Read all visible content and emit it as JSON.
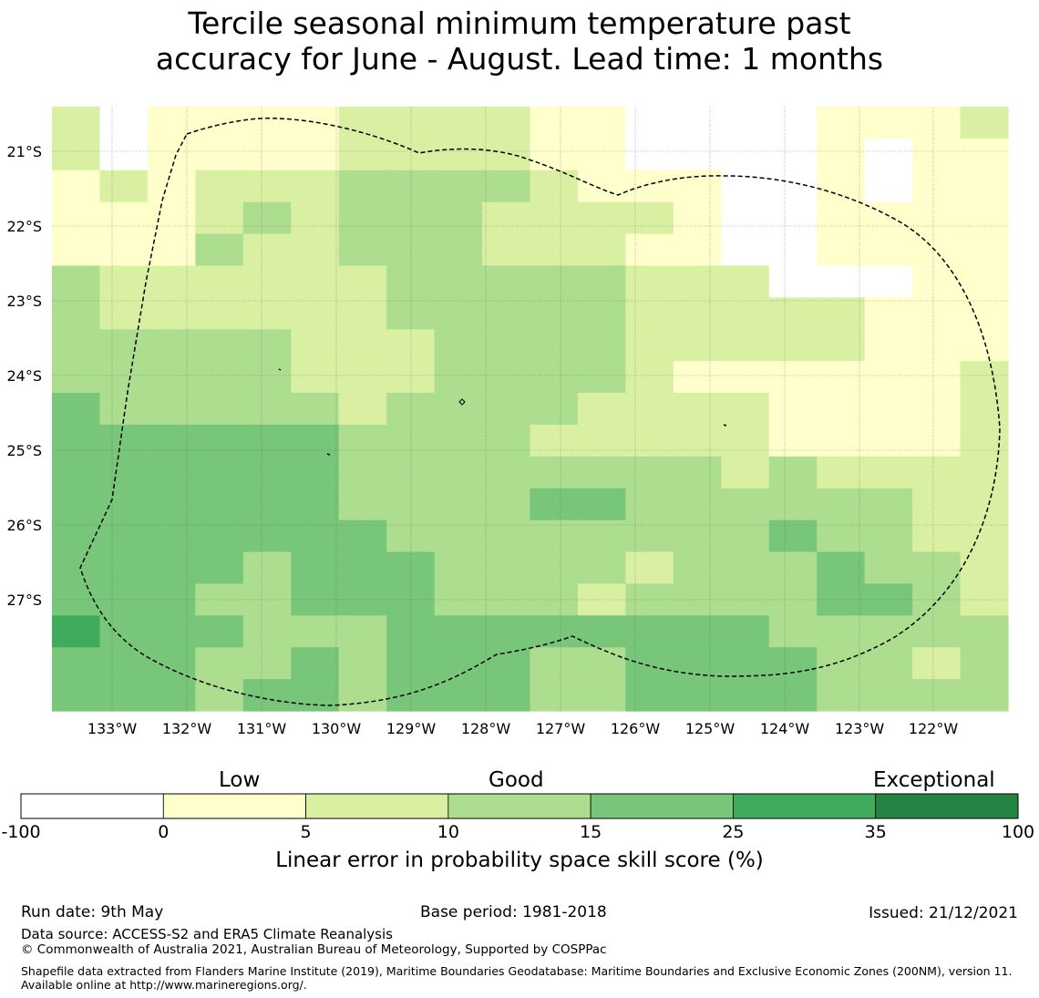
{
  "title_line1": "Tercile seasonal minimum temperature past",
  "title_line2": "accuracy for June - August. Lead time: 1 months",
  "map": {
    "lat_labels": [
      "21°S",
      "22°S",
      "23°S",
      "24°S",
      "25°S",
      "26°S",
      "27°S"
    ],
    "lon_labels": [
      "133°W",
      "132°W",
      "131°W",
      "130°W",
      "129°W",
      "128°W",
      "127°W",
      "126°W",
      "125°W",
      "124°W",
      "123°W",
      "122°W"
    ],
    "grid_colors": [
      "#ffffff",
      "#ffffcc",
      "#d9f0a3",
      "#addd8e",
      "#78c679",
      "#41ab5d",
      "#238443"
    ],
    "grid_note": "Each cell value is a colour class index into grid_colors (0=-100..0, 1=0..5, 2=5..10, 3=10..15, 4=15..25, 5=25..35, 6=35..100)",
    "grid": [
      [
        2,
        0,
        1,
        1,
        1,
        1,
        2,
        2,
        2,
        2,
        1,
        1,
        0,
        0,
        0,
        0,
        1,
        1,
        1,
        2
      ],
      [
        2,
        0,
        1,
        1,
        1,
        1,
        2,
        2,
        2,
        2,
        1,
        1,
        0,
        0,
        0,
        0,
        1,
        0,
        1,
        1
      ],
      [
        1,
        2,
        1,
        2,
        2,
        2,
        3,
        3,
        3,
        3,
        2,
        1,
        1,
        1,
        0,
        0,
        1,
        0,
        1,
        1
      ],
      [
        1,
        1,
        1,
        2,
        3,
        2,
        3,
        3,
        3,
        2,
        2,
        2,
        2,
        1,
        0,
        0,
        1,
        1,
        1,
        1
      ],
      [
        1,
        1,
        1,
        3,
        2,
        2,
        3,
        3,
        3,
        2,
        2,
        2,
        1,
        1,
        0,
        0,
        1,
        1,
        1,
        1
      ],
      [
        3,
        2,
        2,
        2,
        2,
        2,
        2,
        3,
        3,
        3,
        3,
        3,
        2,
        2,
        2,
        0,
        0,
        0,
        1,
        1
      ],
      [
        3,
        2,
        2,
        2,
        2,
        2,
        2,
        3,
        3,
        3,
        3,
        3,
        2,
        2,
        2,
        2,
        2,
        1,
        1,
        1
      ],
      [
        3,
        3,
        3,
        3,
        3,
        2,
        2,
        2,
        3,
        3,
        3,
        3,
        2,
        2,
        2,
        2,
        2,
        1,
        1,
        1
      ],
      [
        3,
        3,
        3,
        3,
        3,
        2,
        2,
        2,
        3,
        3,
        3,
        3,
        2,
        1,
        1,
        1,
        1,
        1,
        1,
        2
      ],
      [
        4,
        3,
        3,
        3,
        3,
        3,
        2,
        3,
        3,
        3,
        3,
        2,
        2,
        2,
        2,
        1,
        1,
        1,
        1,
        2
      ],
      [
        4,
        4,
        4,
        4,
        4,
        4,
        3,
        3,
        3,
        3,
        2,
        2,
        2,
        2,
        2,
        1,
        1,
        1,
        1,
        2
      ],
      [
        4,
        4,
        4,
        4,
        4,
        4,
        3,
        3,
        3,
        3,
        3,
        3,
        3,
        3,
        2,
        3,
        2,
        2,
        2,
        2
      ],
      [
        4,
        4,
        4,
        4,
        4,
        4,
        3,
        3,
        3,
        3,
        4,
        4,
        3,
        3,
        3,
        3,
        3,
        3,
        2,
        2
      ],
      [
        4,
        4,
        4,
        4,
        4,
        4,
        4,
        3,
        3,
        3,
        3,
        3,
        3,
        3,
        3,
        4,
        3,
        3,
        2,
        2
      ],
      [
        4,
        4,
        4,
        4,
        3,
        4,
        4,
        4,
        3,
        3,
        3,
        3,
        2,
        3,
        3,
        3,
        4,
        3,
        3,
        2
      ],
      [
        4,
        4,
        4,
        3,
        3,
        4,
        4,
        4,
        3,
        3,
        3,
        2,
        3,
        3,
        3,
        3,
        4,
        4,
        3,
        2
      ],
      [
        5,
        4,
        4,
        4,
        3,
        3,
        3,
        4,
        4,
        4,
        4,
        4,
        4,
        4,
        4,
        3,
        3,
        3,
        3,
        3
      ],
      [
        4,
        4,
        4,
        3,
        3,
        4,
        3,
        4,
        4,
        4,
        3,
        3,
        4,
        4,
        4,
        4,
        3,
        3,
        2,
        3
      ],
      [
        4,
        4,
        4,
        3,
        4,
        4,
        3,
        4,
        4,
        4,
        3,
        3,
        4,
        4,
        4,
        4,
        3,
        3,
        3,
        3
      ]
    ]
  },
  "colorbar": {
    "header_low": "Low",
    "header_good": "Good",
    "header_exceptional": "Exceptional",
    "colors": [
      "#ffffff",
      "#ffffcc",
      "#d9f0a3",
      "#addd8e",
      "#78c679",
      "#41ab5d",
      "#238443"
    ],
    "ticks": [
      "-100",
      "0",
      "5",
      "10",
      "15",
      "25",
      "35",
      "100"
    ],
    "title": "Linear error in probability space skill score (%)"
  },
  "footer": {
    "run_date": "Run date: 9th May",
    "base_period": "Base period: 1981-2018",
    "issued": "Issued: 21/12/2021",
    "data_source": "Data source: ACCESS-S2 and ERA5 Climate Reanalysis",
    "copyright": "© Commonwealth of Australia 2021, Australian Bureau of Meteorology, Supported by COSPPac",
    "shapefile": "Shapefile data extracted from Flanders Marine Institute (2019), Maritime Boundaries Geodatabase: Maritime Boundaries and Exclusive Economic Zones (200NM), version 11. Available online at http://www.marineregions.org/."
  }
}
